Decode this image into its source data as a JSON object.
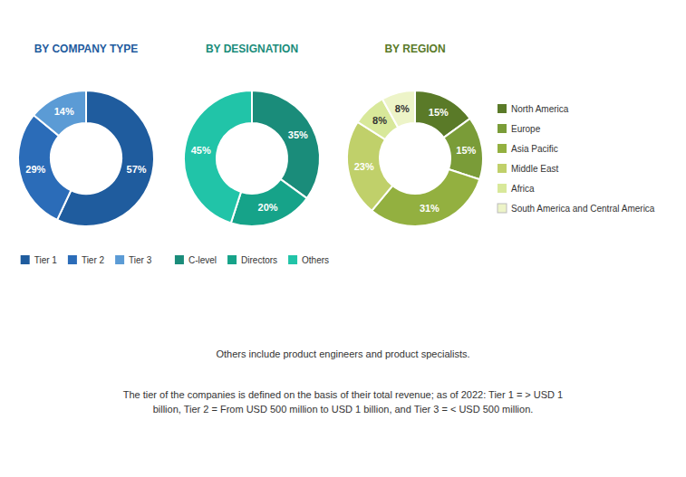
{
  "chart_data": [
    {
      "type": "pie",
      "title": "BY COMPANY TYPE",
      "categories": [
        "Tier 1",
        "Tier 2",
        "Tier 3"
      ],
      "values": [
        57,
        29,
        14
      ],
      "value_labels": [
        "57%",
        "29%",
        "14%"
      ],
      "colors": [
        "#1f5c9e",
        "#2b6cb8",
        "#5b9bd5"
      ],
      "data_labels": true,
      "legend": "bottom",
      "annotations": [
        "Others include product engineers and product specialists.",
        "The tier of the companies is defined on the basis of their total revenue; as of 2022: Tier 1 = > USD 1",
        "billion, Tier 2 = From USD 500 million to USD 1 billion, and Tier 3 = < USD 500 million."
      ]
    },
    {
      "type": "pie",
      "title": "BY DESIGNATION",
      "categories": [
        "C-level",
        "Directors",
        "Others"
      ],
      "values": [
        35,
        20,
        45
      ],
      "value_labels": [
        "35%",
        "20%",
        "45%"
      ],
      "colors": [
        "#1a8c7a",
        "#16a389",
        "#21c4a8"
      ],
      "data_labels": true,
      "legend": "bottom"
    },
    {
      "type": "pie",
      "title": "BY REGION",
      "categories": [
        "North America",
        "Europe",
        "Asia Pacific",
        "Middle East",
        "Africa",
        "South America and Central America"
      ],
      "values": [
        15,
        15,
        31,
        23,
        8,
        8
      ],
      "value_labels": [
        "15%",
        "15%",
        "31%",
        "23%",
        "8%",
        "8%"
      ],
      "colors": [
        "#5a7a28",
        "#7a9c38",
        "#93b040",
        "#c0d06a",
        "#d8e89a",
        "#edf4c8"
      ],
      "data_labels": true,
      "legend": "right"
    }
  ]
}
